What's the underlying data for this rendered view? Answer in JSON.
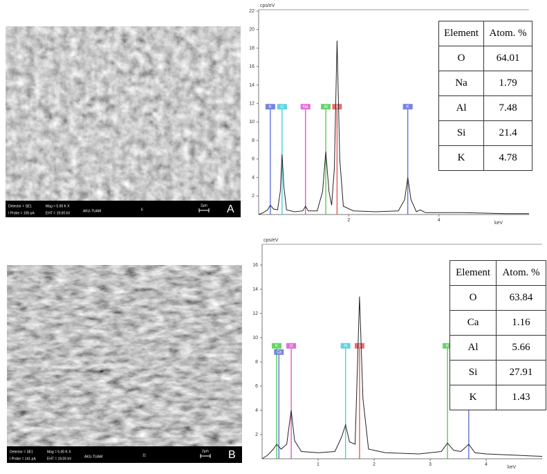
{
  "images": [
    {
      "labels": [
        "Detector = SE1",
        "Mag = 5.00 K X",
        "I Probe = 105 pA",
        "EHT = 19.00 kV",
        "AKU-TUAM",
        "6",
        "2µm"
      ],
      "panel_label": "A"
    },
    {
      "labels": [
        "Detector = SE1",
        "Mag = 5.00 K X",
        "I Probe = 141 pA",
        "EHT = 19.00 kV",
        "AKU-TUAM",
        "11",
        "2µm"
      ],
      "panel_label": "B"
    }
  ],
  "chart_data": [
    {
      "type": "line",
      "ylabel": "cps/eV",
      "xlabel": "keV",
      "color": "#222222",
      "x": [
        0,
        0.1,
        0.2,
        0.26,
        0.33,
        0.42,
        0.48,
        0.52,
        0.56,
        0.62,
        0.8,
        0.98,
        1.04,
        1.1,
        1.3,
        1.42,
        1.49,
        1.56,
        1.62,
        1.68,
        1.74,
        1.8,
        1.88,
        2.1,
        2.6,
        3.1,
        3.24,
        3.31,
        3.38,
        3.5,
        3.59,
        3.7,
        4.5,
        5.5,
        6
      ],
      "values": [
        0,
        0.2,
        0.5,
        1.0,
        0.6,
        0.5,
        2.5,
        6.5,
        3,
        0.5,
        0.3,
        0.4,
        0.9,
        0.4,
        0.4,
        2.5,
        6.8,
        2.5,
        1.0,
        5,
        18.8,
        6,
        0.9,
        0.4,
        0.3,
        0.4,
        1.6,
        4.0,
        1.6,
        0.3,
        0.5,
        0.2,
        0.2,
        0.1,
        0.1
      ],
      "xlim": [
        0,
        6
      ],
      "ylim": [
        0,
        22
      ],
      "xticks": [
        2,
        4
      ],
      "yticks": [
        2,
        4,
        6,
        8,
        10,
        12,
        14,
        16,
        18,
        20,
        22
      ],
      "markers": [
        {
          "label": "K",
          "x": 0.26,
          "color": "#4a5ad8"
        },
        {
          "label": "O",
          "x": 0.52,
          "color": "#2cc4d4"
        },
        {
          "label": "Na",
          "x": 1.04,
          "color": "#d83cc8"
        },
        {
          "label": "Al",
          "x": 1.49,
          "color": "#36c436"
        },
        {
          "label": "Si",
          "x": 1.74,
          "color": "#e04040"
        },
        {
          "label": "K",
          "x": 3.31,
          "color": "#4a5ad8"
        }
      ],
      "table": {
        "header": [
          "Element",
          "Atom. %"
        ],
        "rows": [
          [
            "O",
            "64.01"
          ],
          [
            "Na",
            "1.79"
          ],
          [
            "Al",
            "7.48"
          ],
          [
            "Si",
            "21.4"
          ],
          [
            "K",
            "4.78"
          ]
        ]
      }
    },
    {
      "type": "line",
      "ylabel": "cps/eV",
      "xlabel": "keV",
      "color": "#222222",
      "x": [
        0,
        0.1,
        0.2,
        0.26,
        0.34,
        0.44,
        0.52,
        0.58,
        0.7,
        1.0,
        1.3,
        1.42,
        1.49,
        1.56,
        1.66,
        1.74,
        1.8,
        1.9,
        2.2,
        2.8,
        3.2,
        3.31,
        3.42,
        3.55,
        3.69,
        3.8,
        4.0,
        4.5,
        5.0
      ],
      "values": [
        0,
        0.3,
        0.8,
        1.2,
        0.8,
        1.2,
        4.0,
        1.5,
        0.6,
        0.5,
        0.6,
        1.8,
        2.8,
        1.4,
        1.2,
        13.4,
        5,
        0.8,
        0.5,
        0.4,
        0.6,
        1.3,
        0.7,
        0.6,
        1.2,
        0.5,
        0.4,
        0.3,
        0.2
      ],
      "xlim": [
        0,
        5
      ],
      "ylim": [
        0,
        17.6
      ],
      "xticks": [
        1,
        2,
        3,
        4
      ],
      "yticks": [
        2,
        4,
        6,
        8,
        10,
        12,
        14,
        16
      ],
      "markers": [
        {
          "label": "K",
          "x": 0.26,
          "color": "#36c436"
        },
        {
          "label": "Ca",
          "x": 0.3,
          "color": "#4a5ad8"
        },
        {
          "label": "O",
          "x": 0.52,
          "color": "#d83cc8"
        },
        {
          "label": "Al",
          "x": 1.49,
          "color": "#2cc4d4"
        },
        {
          "label": "Si",
          "x": 1.74,
          "color": "#e04040"
        },
        {
          "label": "K",
          "x": 3.31,
          "color": "#36c436"
        },
        {
          "label": "Ca",
          "x": 3.69,
          "color": "#4a5ad8"
        }
      ],
      "table": {
        "header": [
          "Element",
          "Atom. %"
        ],
        "rows": [
          [
            "O",
            "63.84"
          ],
          [
            "Ca",
            "1.16"
          ],
          [
            "Al",
            "5.66"
          ],
          [
            "Si",
            "27.91"
          ],
          [
            "K",
            "1.43"
          ]
        ]
      }
    }
  ]
}
